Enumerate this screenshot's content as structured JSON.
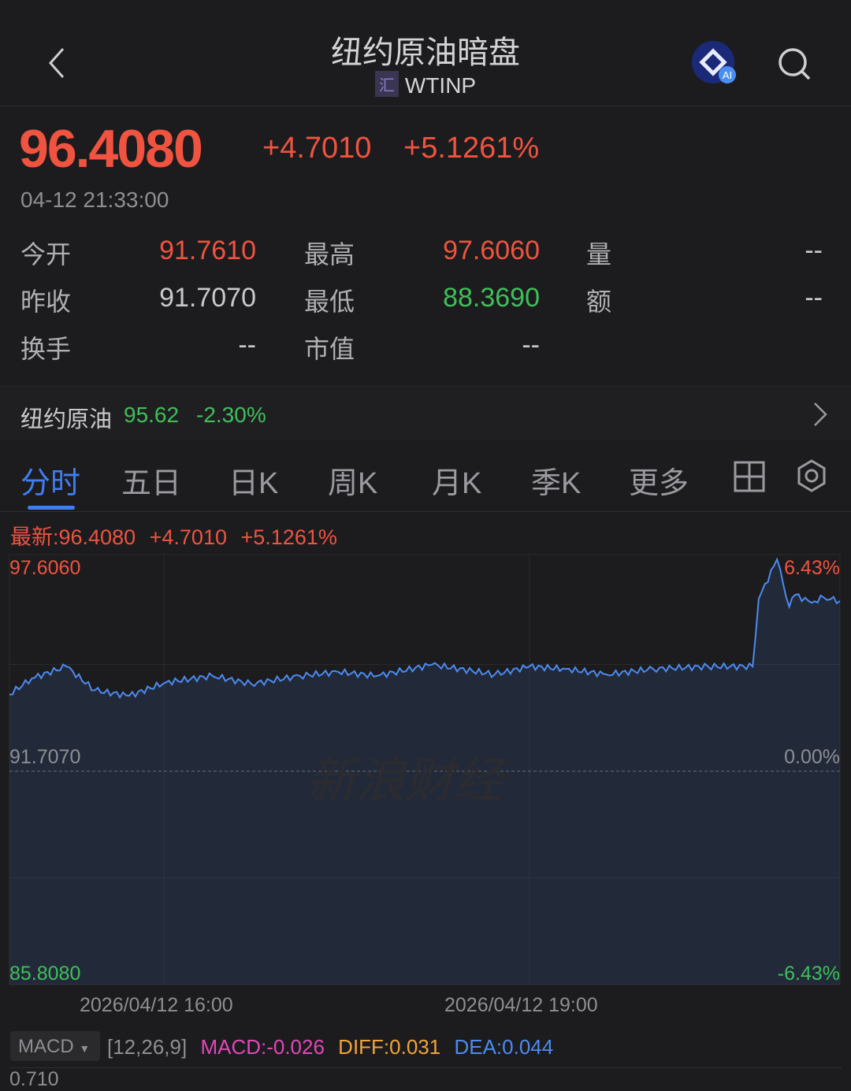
{
  "header": {
    "title": "纽约原油暗盘",
    "badge": "汇",
    "symbol": "WTINP",
    "icons": [
      "back-chevron-icon",
      "ai-assistant-icon",
      "search-icon"
    ]
  },
  "quote": {
    "price": "96.4080",
    "change": "+4.7010",
    "change_pct": "+5.1261%",
    "time": "04-12 21:33:00"
  },
  "stats": [
    {
      "label": "今开",
      "value": "91.7610",
      "color": "#f0533f"
    },
    {
      "label": "最高",
      "value": "97.6060",
      "color": "#f0533f"
    },
    {
      "label": "量",
      "value": "--",
      "color": "#c9c9cc"
    },
    {
      "label": "昨收",
      "value": "91.7070",
      "color": "#c9c9cc"
    },
    {
      "label": "最低",
      "value": "88.3690",
      "color": "#3fbf5a"
    },
    {
      "label": "额",
      "value": "--",
      "color": "#c9c9cc"
    },
    {
      "label": "换手",
      "value": "--",
      "color": "#c9c9cc"
    },
    {
      "label": "市值",
      "value": "--",
      "color": "#c9c9cc"
    }
  ],
  "related": {
    "name": "纽约原油",
    "price": "95.62",
    "change_pct": "-2.30%"
  },
  "tabs": [
    "分时",
    "五日",
    "日K",
    "周K",
    "月K",
    "季K",
    "更多"
  ],
  "active_tab": 0,
  "chart_info": {
    "latest": "最新:96.4080",
    "change": "+4.7010",
    "change_pct": "+5.1261%"
  },
  "watermark": "新浪财经",
  "chart_data": {
    "type": "area",
    "y_labels": {
      "top": "97.6060",
      "mid": "91.7070",
      "bottom": "85.8080",
      "top_pct": "6.43%",
      "mid_pct": "0.00%",
      "bottom_pct": "-6.43%"
    },
    "ylim": [
      85.808,
      97.606
    ],
    "baseline": 91.707,
    "x_ticks": [
      "2026/04/12 16:00",
      "2026/04/12 19:00"
    ],
    "xlim": [
      "14:44",
      "21:33"
    ],
    "points": [
      [
        "14:44",
        93.83
      ],
      [
        "14:55",
        94.27
      ],
      [
        "15:12",
        94.6
      ],
      [
        "15:26",
        93.94
      ],
      [
        "15:43",
        93.79
      ],
      [
        "16:01",
        94.16
      ],
      [
        "16:24",
        94.34
      ],
      [
        "16:43",
        94.12
      ],
      [
        "17:07",
        94.34
      ],
      [
        "17:26",
        94.45
      ],
      [
        "17:45",
        94.34
      ],
      [
        "18:12",
        94.65
      ],
      [
        "18:43",
        94.38
      ],
      [
        "19:00",
        94.6
      ],
      [
        "19:18",
        94.53
      ],
      [
        "19:38",
        94.38
      ],
      [
        "20:01",
        94.53
      ],
      [
        "20:28",
        94.6
      ],
      [
        "20:50",
        94.6
      ],
      [
        "20:53",
        96.47
      ],
      [
        "21:02",
        97.56
      ],
      [
        "21:08",
        96.25
      ],
      [
        "21:11",
        96.58
      ],
      [
        "21:19",
        96.36
      ],
      [
        "21:25",
        96.51
      ],
      [
        "21:33",
        96.41
      ]
    ],
    "line_color": "#4d8af0"
  },
  "macd": {
    "selector": "MACD",
    "params": "[12,26,9]",
    "macd": "MACD:-0.026",
    "diff": "DIFF:0.031",
    "dea": "DEA:0.044",
    "axis_top": "0.710"
  }
}
